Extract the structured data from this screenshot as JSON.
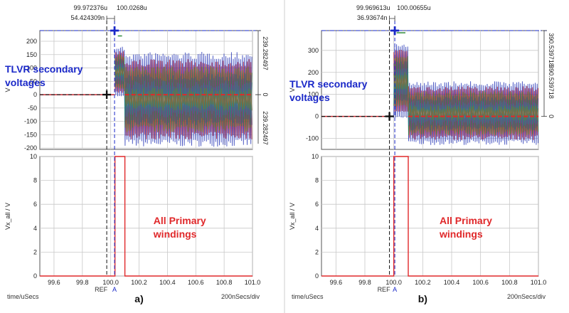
{
  "chart_data": [
    {
      "id": "a",
      "type": "line",
      "subplot_label": "a)",
      "x_axis": {
        "label": "time/uSecs",
        "ticks": [
          99.6,
          99.8,
          100.0,
          100.2,
          100.4,
          100.6,
          100.8,
          101.0
        ],
        "range": [
          99.5,
          101.0
        ],
        "scale_label": "200nSecs/div"
      },
      "cursors": {
        "cursor1_time": "99.972376u",
        "cursor2_time": "100.0268u",
        "delta": "54.424309n",
        "ref_label": "REF",
        "ref_letter": "A",
        "cursor1_x": 99.972,
        "cursor2_x": 100.027
      },
      "top_panel": {
        "ylabel": "V",
        "ylim": [
          -205,
          240
        ],
        "yticks": [
          200,
          150,
          100,
          50,
          0,
          -50,
          -100,
          -150,
          -200
        ],
        "right_readouts": [
          "239.282497",
          "0",
          "239.282497"
        ],
        "annotation": [
          "TLVR secondary",
          "voltages"
        ],
        "signal": {
          "start_x": 100.03,
          "step_x": 100.1,
          "end_x": 101.0,
          "peak_before_step": 220,
          "amp_before_step": 180,
          "max_after_step": 160,
          "min_after_step": -195
        }
      },
      "bottom_panel": {
        "ylabel": "Vx_all / V",
        "ylim": [
          0,
          10
        ],
        "yticks": [
          10,
          8,
          6,
          4,
          2,
          0
        ],
        "annotation": [
          "All Primary",
          "windings"
        ],
        "pulse": {
          "x_start": 100.03,
          "x_end": 100.1,
          "high": 10,
          "low": 0
        }
      }
    },
    {
      "id": "b",
      "type": "line",
      "subplot_label": "b)",
      "x_axis": {
        "label": "time/uSecs",
        "ticks": [
          99.6,
          99.8,
          100.0,
          100.2,
          100.4,
          100.6,
          100.8,
          101.0
        ],
        "range": [
          99.5,
          101.0
        ],
        "scale_label": "200nSecs/div"
      },
      "cursors": {
        "cursor1_time": "99.969613u",
        "cursor2_time": "100.00655u",
        "delta": "36.93674n",
        "ref_label": "REF",
        "ref_letter": "A",
        "cursor1_x": 99.97,
        "cursor2_x": 100.007
      },
      "top_panel": {
        "ylabel": "V",
        "ylim": [
          -150,
          390
        ],
        "yticks": [
          300,
          200,
          100,
          0,
          -100
        ],
        "right_readouts": [
          "390.539718",
          "390.539718",
          "0"
        ],
        "annotation": [
          "TLVR secondary",
          "voltages"
        ],
        "signal": {
          "start_x": 100.0,
          "step_x": 100.1,
          "end_x": 101.0,
          "peak_before_step": 380,
          "amp_before_step": 330,
          "max_after_step": 160,
          "min_after_step": -130
        }
      },
      "bottom_panel": {
        "ylabel": "Vx_all / V",
        "ylim": [
          0,
          10
        ],
        "yticks": [
          10,
          8,
          6,
          4,
          2,
          0
        ],
        "annotation": [
          "All Primary",
          "windings"
        ],
        "pulse": {
          "x_start": 100.0,
          "x_end": 100.1,
          "high": 10,
          "low": 0
        }
      }
    }
  ],
  "colors": {
    "series": [
      "#1e2fb4",
      "#c8262e",
      "#2f8a3a",
      "#7a3a8c",
      "#1e8a8a",
      "#8a6a2a"
    ],
    "pulse": "#e0282a",
    "blue_annotation": "#1a28c8",
    "red_annotation": "#e0282a",
    "cursor_blue": "#1a28c8",
    "cursor_black": "#111111",
    "divider": "#cfcfcf"
  }
}
